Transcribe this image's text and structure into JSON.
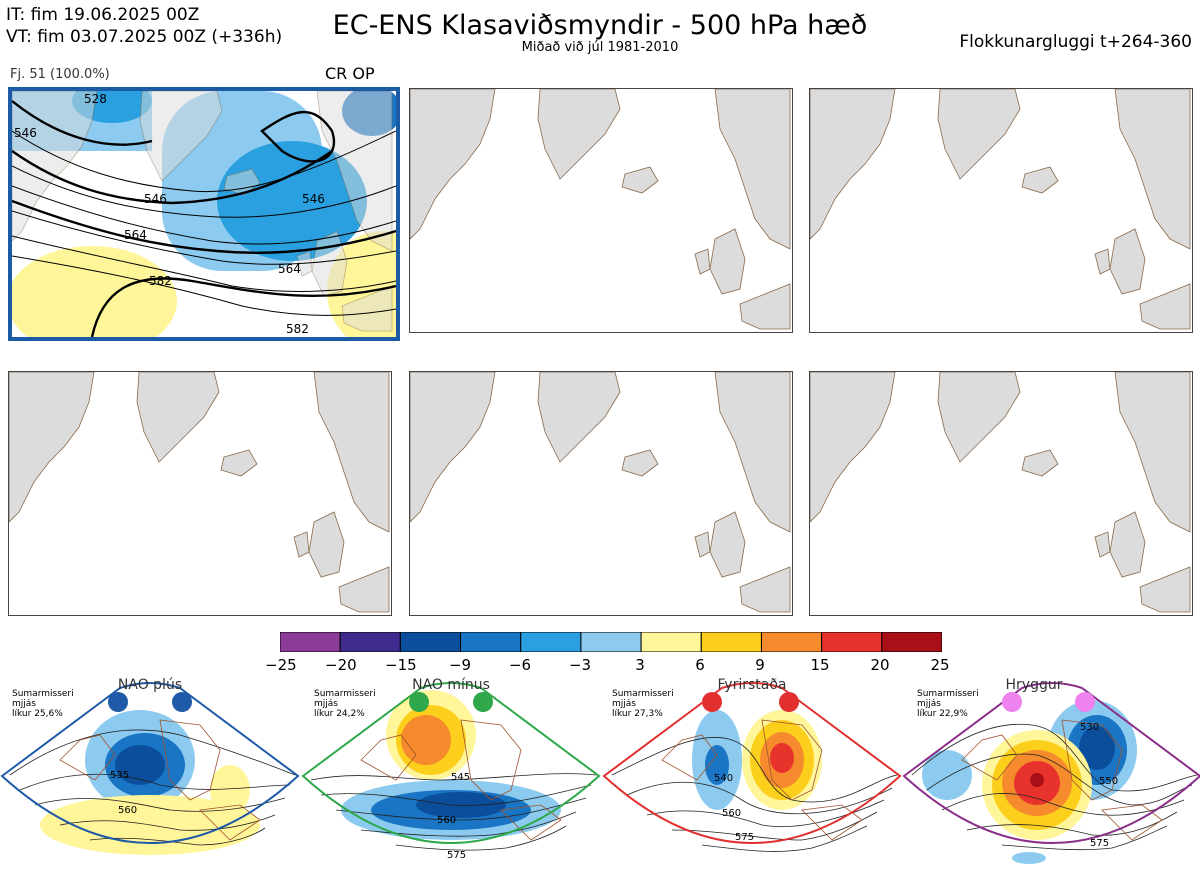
{
  "header": {
    "it_line": "IT: fim 19.06.2025 00Z",
    "vt_line": "VT: fim 03.07.2025 00Z  (+336h)",
    "title": "EC-ENS Klasaviðsmyndir - 500 hPa hæð",
    "subtitle": "Miðað við júl 1981-2010",
    "window": "Flokkunargluggi t+264-360"
  },
  "cluster": {
    "label": "Fj. 51 (100.0%)",
    "tag": "CR OP"
  },
  "contour_labels": [
    "546",
    "546",
    "564",
    "582",
    "564",
    "528",
    "546",
    "582"
  ],
  "regimes": [
    {
      "name": "NAO plús",
      "season": "Sumarmisseri",
      "fit": "mjjás",
      "prob": "líkur 25,6%",
      "color": "#1e5aa8",
      "labels": [
        "535",
        "560"
      ]
    },
    {
      "name": "NAO mínus",
      "season": "Sumarmisseri",
      "fit": "mjjás",
      "prob": "líkur 24,2%",
      "color": "#2ea84a",
      "labels": [
        "545",
        "560",
        "575"
      ]
    },
    {
      "name": "Fyrirstaða",
      "season": "Sumarmisseri",
      "fit": "mjjás",
      "prob": "líkur 27,3%",
      "color": "#e23030",
      "labels": [
        "540",
        "560",
        "575"
      ]
    },
    {
      "name": "Hryggur",
      "season": "Sumarmisseri",
      "fit": "mjjás",
      "prob": "líkur 22,9%",
      "color": "#8a2f8a",
      "labels": [
        "530",
        "550",
        "575"
      ]
    }
  ],
  "chart_data": {
    "type": "heatmap",
    "colorbar": {
      "ticks": [
        "−25",
        "−20",
        "−15",
        "−9",
        "−6",
        "−3",
        "3",
        "6",
        "9",
        "15",
        "20",
        "25"
      ],
      "colors": [
        "#8b3c96",
        "#3f2b8e",
        "#0b4f9c",
        "#1a76c4",
        "#2aa0e0",
        "#8ccbef",
        "#ffffff",
        "#fff599",
        "#fccf1d",
        "#f58b2c",
        "#e8322c",
        "#a80f16"
      ]
    }
  }
}
